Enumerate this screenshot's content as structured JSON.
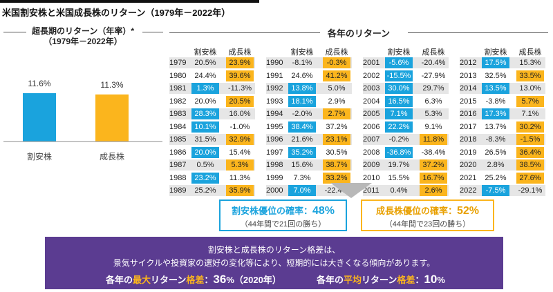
{
  "title": "米国割安株と米国成長株のリターン（1979年－2022年）",
  "left_panel": {
    "title_line1": "超長期のリターン（年率）*",
    "title_line2": "（1979年－2022年）"
  },
  "right_panel": {
    "title": "各年のリターン",
    "header_value": "割安株",
    "header_growth": "成長株"
  },
  "colors": {
    "value": "#1aa3dd",
    "growth": "#fbb51d",
    "summary_bg": "#5b3c91"
  },
  "chart_data": {
    "type": "bar",
    "categories": [
      "割安株",
      "成長株"
    ],
    "values": [
      11.6,
      11.3
    ],
    "value_labels": [
      "11.6%",
      "11.3%"
    ],
    "ylim": [
      0,
      14
    ]
  },
  "tables": [
    {
      "rows": [
        {
          "year": "1979",
          "value": "20.5%",
          "growth": "23.9%",
          "winner": "growth"
        },
        {
          "year": "1980",
          "value": "24.4%",
          "growth": "39.6%",
          "winner": "growth"
        },
        {
          "year": "1981",
          "value": "1.3%",
          "growth": "-11.3%",
          "winner": "value"
        },
        {
          "year": "1982",
          "value": "20.0%",
          "growth": "20.5%",
          "winner": "growth"
        },
        {
          "year": "1983",
          "value": "28.3%",
          "growth": "16.0%",
          "winner": "value"
        },
        {
          "year": "1984",
          "value": "10.1%",
          "growth": "-1.0%",
          "winner": "value"
        },
        {
          "year": "1985",
          "value": "31.5%",
          "growth": "32.9%",
          "winner": "growth"
        },
        {
          "year": "1986",
          "value": "20.0%",
          "growth": "15.4%",
          "winner": "value"
        },
        {
          "year": "1987",
          "value": "0.5%",
          "growth": "5.3%",
          "winner": "growth"
        },
        {
          "year": "1988",
          "value": "23.2%",
          "growth": "11.3%",
          "winner": "value"
        },
        {
          "year": "1989",
          "value": "25.2%",
          "growth": "35.9%",
          "winner": "growth"
        }
      ]
    },
    {
      "rows": [
        {
          "year": "1990",
          "value": "-8.1%",
          "growth": "-0.3%",
          "winner": "growth"
        },
        {
          "year": "1991",
          "value": "24.6%",
          "growth": "41.2%",
          "winner": "growth"
        },
        {
          "year": "1992",
          "value": "13.8%",
          "growth": "5.0%",
          "winner": "value"
        },
        {
          "year": "1993",
          "value": "18.1%",
          "growth": "2.9%",
          "winner": "value"
        },
        {
          "year": "1994",
          "value": "-2.0%",
          "growth": "2.7%",
          "winner": "growth"
        },
        {
          "year": "1995",
          "value": "38.4%",
          "growth": "37.2%",
          "winner": "value"
        },
        {
          "year": "1996",
          "value": "21.6%",
          "growth": "23.1%",
          "winner": "growth"
        },
        {
          "year": "1997",
          "value": "35.2%",
          "growth": "30.5%",
          "winner": "value"
        },
        {
          "year": "1998",
          "value": "15.6%",
          "growth": "38.7%",
          "winner": "growth"
        },
        {
          "year": "1999",
          "value": "7.3%",
          "growth": "33.2%",
          "winner": "growth"
        },
        {
          "year": "2000",
          "value": "7.0%",
          "growth": "-22.4%",
          "winner": "value"
        }
      ]
    },
    {
      "rows": [
        {
          "year": "2001",
          "value": "-5.6%",
          "growth": "-20.4%",
          "winner": "value"
        },
        {
          "year": "2002",
          "value": "-15.5%",
          "growth": "-27.9%",
          "winner": "value"
        },
        {
          "year": "2003",
          "value": "30.0%",
          "growth": "29.7%",
          "winner": "value"
        },
        {
          "year": "2004",
          "value": "16.5%",
          "growth": "6.3%",
          "winner": "value"
        },
        {
          "year": "2005",
          "value": "7.1%",
          "growth": "5.3%",
          "winner": "value"
        },
        {
          "year": "2006",
          "value": "22.2%",
          "growth": "9.1%",
          "winner": "value"
        },
        {
          "year": "2007",
          "value": "-0.2%",
          "growth": "11.8%",
          "winner": "growth"
        },
        {
          "year": "2008",
          "value": "-36.8%",
          "growth": "-38.4%",
          "winner": "value"
        },
        {
          "year": "2009",
          "value": "19.7%",
          "growth": "37.2%",
          "winner": "growth"
        },
        {
          "year": "2010",
          "value": "15.5%",
          "growth": "16.7%",
          "winner": "growth"
        },
        {
          "year": "2011",
          "value": "0.4%",
          "growth": "2.6%",
          "winner": "growth"
        }
      ]
    },
    {
      "rows": [
        {
          "year": "2012",
          "value": "17.5%",
          "growth": "15.3%",
          "winner": "value"
        },
        {
          "year": "2013",
          "value": "32.5%",
          "growth": "33.5%",
          "winner": "growth"
        },
        {
          "year": "2014",
          "value": "13.5%",
          "growth": "13.0%",
          "winner": "value"
        },
        {
          "year": "2015",
          "value": "-3.8%",
          "growth": "5.7%",
          "winner": "growth"
        },
        {
          "year": "2016",
          "value": "17.3%",
          "growth": "7.1%",
          "winner": "value"
        },
        {
          "year": "2017",
          "value": "13.7%",
          "growth": "30.2%",
          "winner": "growth"
        },
        {
          "year": "2018",
          "value": "-8.3%",
          "growth": "-1.5%",
          "winner": "growth"
        },
        {
          "year": "2019",
          "value": "26.5%",
          "growth": "36.4%",
          "winner": "growth"
        },
        {
          "year": "2020",
          "value": "2.8%",
          "growth": "38.5%",
          "winner": "growth"
        },
        {
          "year": "2021",
          "value": "25.2%",
          "growth": "27.6%",
          "winner": "growth"
        },
        {
          "year": "2022",
          "value": "-7.5%",
          "growth": "-29.1%",
          "winner": "value"
        }
      ]
    }
  ],
  "box_value": {
    "label": "割安株優位の確率：",
    "pct": "48%",
    "sub": "（44年間で21回の勝ち）"
  },
  "box_growth": {
    "label": "成長株優位の確率：",
    "pct": "52%",
    "sub": "（44年間で23回の勝ち）"
  },
  "summary": {
    "line1": "割安株と成長株のリターン格差は、",
    "line2": "景気サイクルや投資家の選好の変化等により、短期的には大きくなる傾向があります。",
    "max_pre": "各年の",
    "max_em": "最大",
    "max_mid": "リターン",
    "max_em2": "格差",
    "max_sep": "：",
    "max_val": "36",
    "max_unit": "%（2020年）",
    "avg_pre": "各年の",
    "avg_em": "平均",
    "avg_mid": "リターン",
    "avg_em2": "格差",
    "avg_sep": "：",
    "avg_val": "10",
    "avg_unit": "%"
  }
}
